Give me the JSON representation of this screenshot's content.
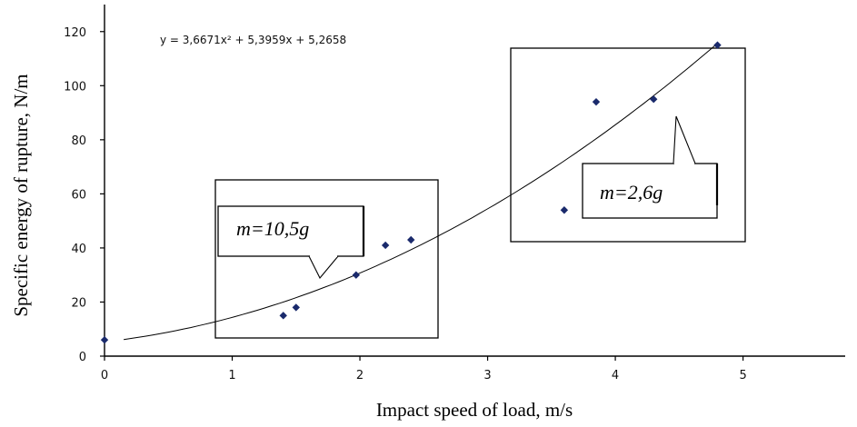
{
  "chart_data": {
    "type": "scatter",
    "xlabel": "Impact speed of load, m/s",
    "ylabel": "Specific energy of rupture, N/m",
    "xlim": [
      0,
      5.8
    ],
    "ylim": [
      0,
      130
    ],
    "xticks": [
      0,
      1,
      2,
      3,
      4,
      5
    ],
    "yticks": [
      0,
      20,
      40,
      60,
      80,
      100,
      120
    ],
    "series": [
      {
        "points": [
          {
            "x": 0.0,
            "y": 6
          },
          {
            "x": 1.4,
            "y": 15
          },
          {
            "x": 1.5,
            "y": 18
          },
          {
            "x": 1.97,
            "y": 30
          },
          {
            "x": 2.2,
            "y": 41
          },
          {
            "x": 2.4,
            "y": 43
          },
          {
            "x": 3.6,
            "y": 54
          },
          {
            "x": 3.85,
            "y": 94
          },
          {
            "x": 4.3,
            "y": 95
          },
          {
            "x": 4.8,
            "y": 115
          }
        ],
        "color": "#1a2a6c"
      }
    ],
    "trendline": {
      "equation_label": "y = 3,6671x² + 5,3959x + 5,2658",
      "a": 3.6671,
      "b": 5.3959,
      "c": 5.2658,
      "x_range": [
        0.15,
        4.8
      ]
    },
    "annotations": [
      {
        "label": "m=10,5g"
      },
      {
        "label": "m=2,6g"
      }
    ],
    "grid": false,
    "legend": "none"
  }
}
